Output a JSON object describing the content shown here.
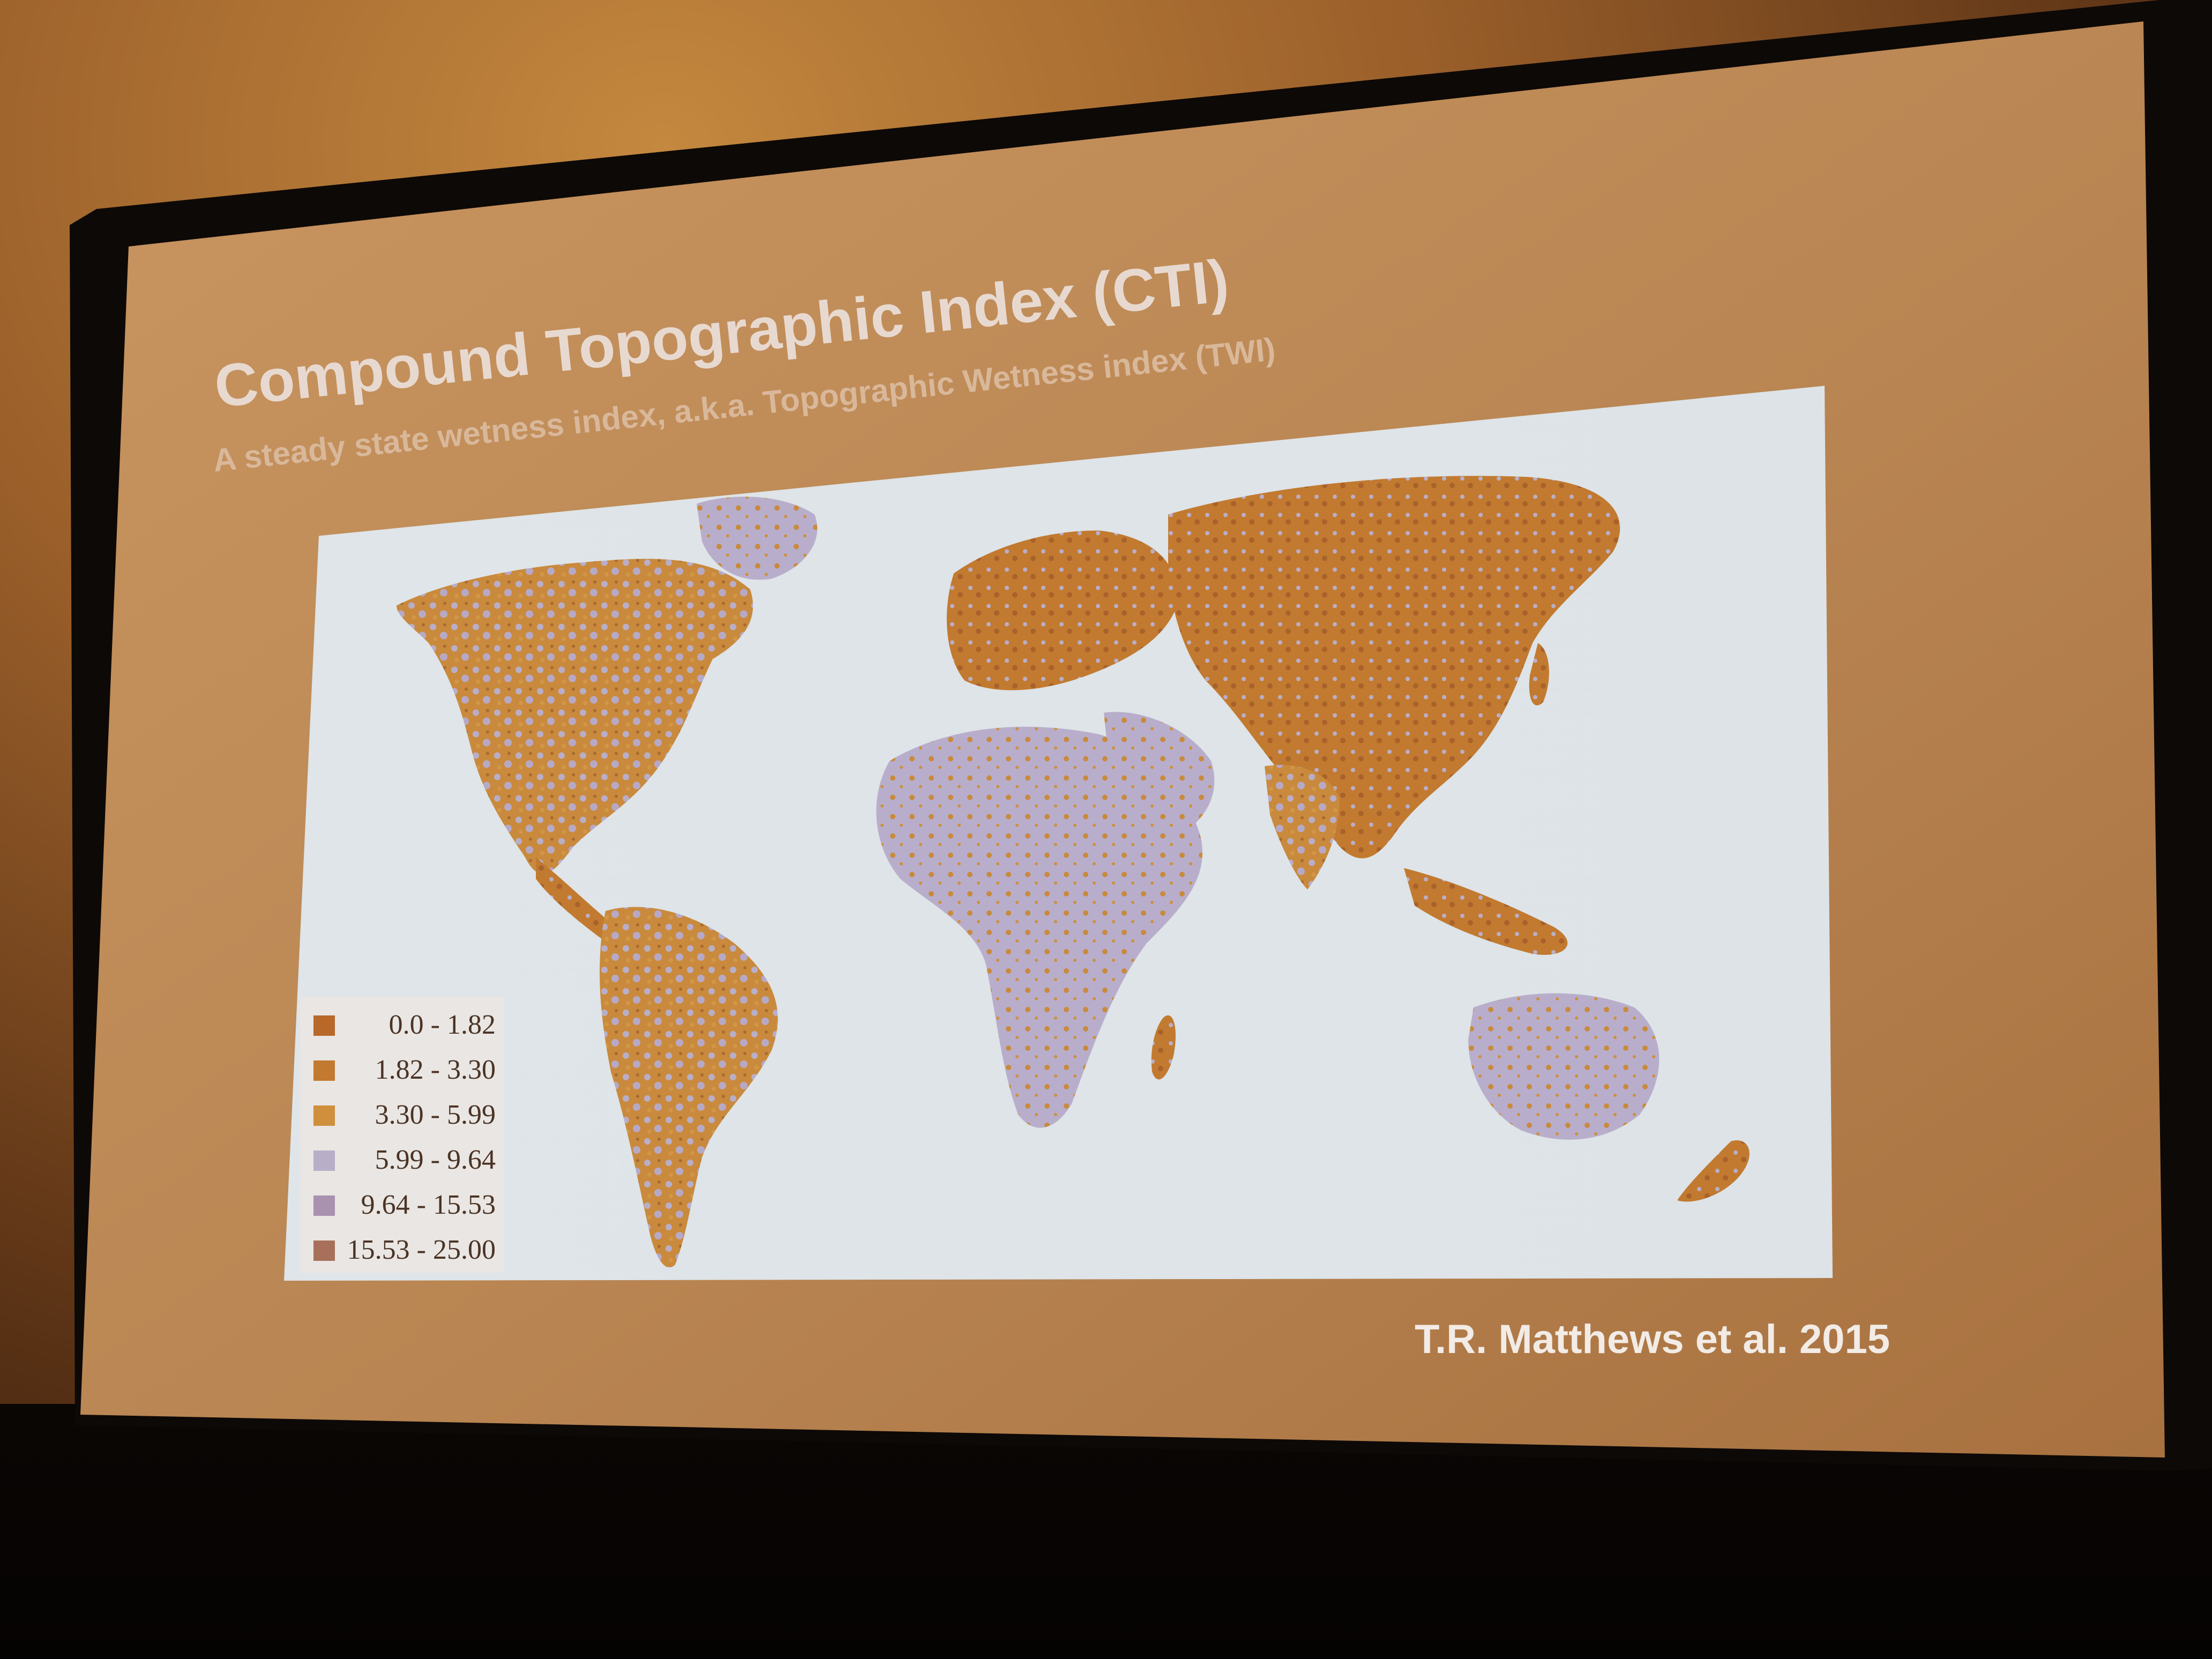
{
  "slide": {
    "title": "Compound Topographic Index (CTI)",
    "subtitle": "A steady state wetness index, a.k.a. Topographic Wetness index (TWI)",
    "citation": "T.R. Matthews et al. 2015"
  },
  "legend": {
    "items": [
      {
        "label": "0.0 - 1.82",
        "color": "#b8692a"
      },
      {
        "label": "1.82 - 3.30",
        "color": "#c27a30"
      },
      {
        "label": "3.30 - 5.99",
        "color": "#cf8f3c"
      },
      {
        "label": "5.99 - 9.64",
        "color": "#b9aec8"
      },
      {
        "label": "9.64 - 15.53",
        "color": "#a991b0"
      },
      {
        "label": "15.53 - 25.00",
        "color": "#a8705a"
      }
    ]
  },
  "colors": {
    "slide_background": "#b88652",
    "map_background": "#dfe6ea",
    "land_low": "#c9873a",
    "land_high": "#b8aecb"
  }
}
